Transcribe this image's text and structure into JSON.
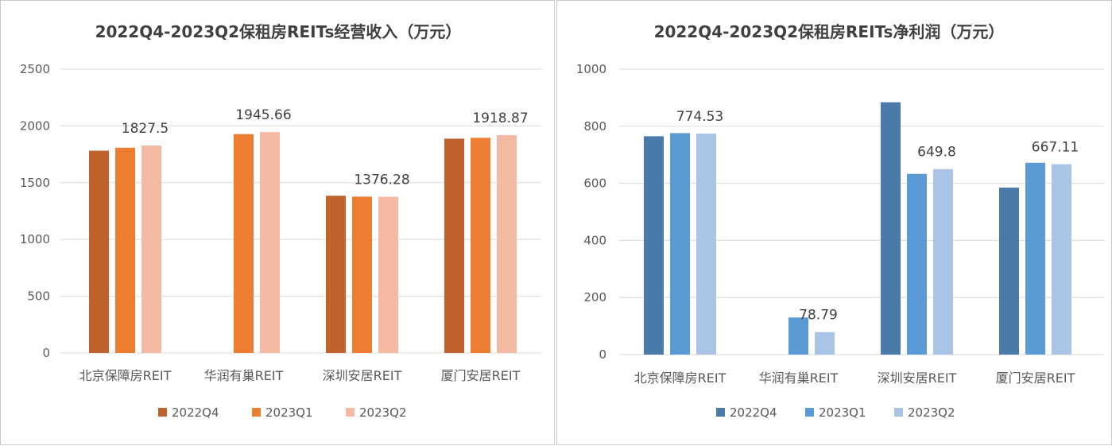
{
  "chart_data": [
    {
      "type": "bar",
      "title": "2022Q4-2023Q2保租房REITs经营收入（万元）",
      "categories": [
        "北京保障房REIT",
        "华润有巢REIT",
        "深圳安居REIT",
        "厦门安居REIT"
      ],
      "ylim": [
        0,
        2500
      ],
      "yticks": [
        "0",
        "500",
        "1000",
        "1500",
        "2000",
        "2500"
      ],
      "grid": true,
      "legend_position": "bottom",
      "series": [
        {
          "name": "2022Q4",
          "color": "#c0622b",
          "values": [
            1782,
            null,
            1385,
            1888
          ]
        },
        {
          "name": "2023Q1",
          "color": "#ed7d31",
          "values": [
            1808,
            1928,
            1377,
            1895
          ]
        },
        {
          "name": "2023Q2",
          "color": "#f4b9a3",
          "values": [
            1827.5,
            1945.66,
            1376.28,
            1918.87
          ]
        }
      ],
      "data_labels": [
        {
          "series": 2,
          "category": 0,
          "text": "1827.5"
        },
        {
          "series": 2,
          "category": 1,
          "text": "1945.66"
        },
        {
          "series": 2,
          "category": 2,
          "text": "1376.28"
        },
        {
          "series": 2,
          "category": 3,
          "text": "1918.87"
        }
      ]
    },
    {
      "type": "bar",
      "title": "2022Q4-2023Q2保租房REITs净利润（万元）",
      "categories": [
        "北京保障房REIT",
        "华润有巢REIT",
        "深圳安居REIT",
        "厦门安居REIT"
      ],
      "ylim": [
        0,
        1000
      ],
      "yticks": [
        "0",
        "200",
        "400",
        "600",
        "800",
        "1000"
      ],
      "grid": true,
      "legend_position": "bottom",
      "series": [
        {
          "name": "2022Q4",
          "color": "#4a7aaa",
          "values": [
            765,
            null,
            884,
            585
          ]
        },
        {
          "name": "2023Q1",
          "color": "#5b9bd5",
          "values": [
            776,
            130,
            633,
            672
          ]
        },
        {
          "name": "2023Q2",
          "color": "#aac4e6",
          "values": [
            774.53,
            78.79,
            649.8,
            667.11
          ]
        }
      ],
      "data_labels": [
        {
          "series": 2,
          "category": 0,
          "text": "774.53"
        },
        {
          "series": 2,
          "category": 1,
          "text": "78.79"
        },
        {
          "series": 2,
          "category": 2,
          "text": "649.8"
        },
        {
          "series": 2,
          "category": 3,
          "text": "667.11"
        }
      ]
    }
  ]
}
